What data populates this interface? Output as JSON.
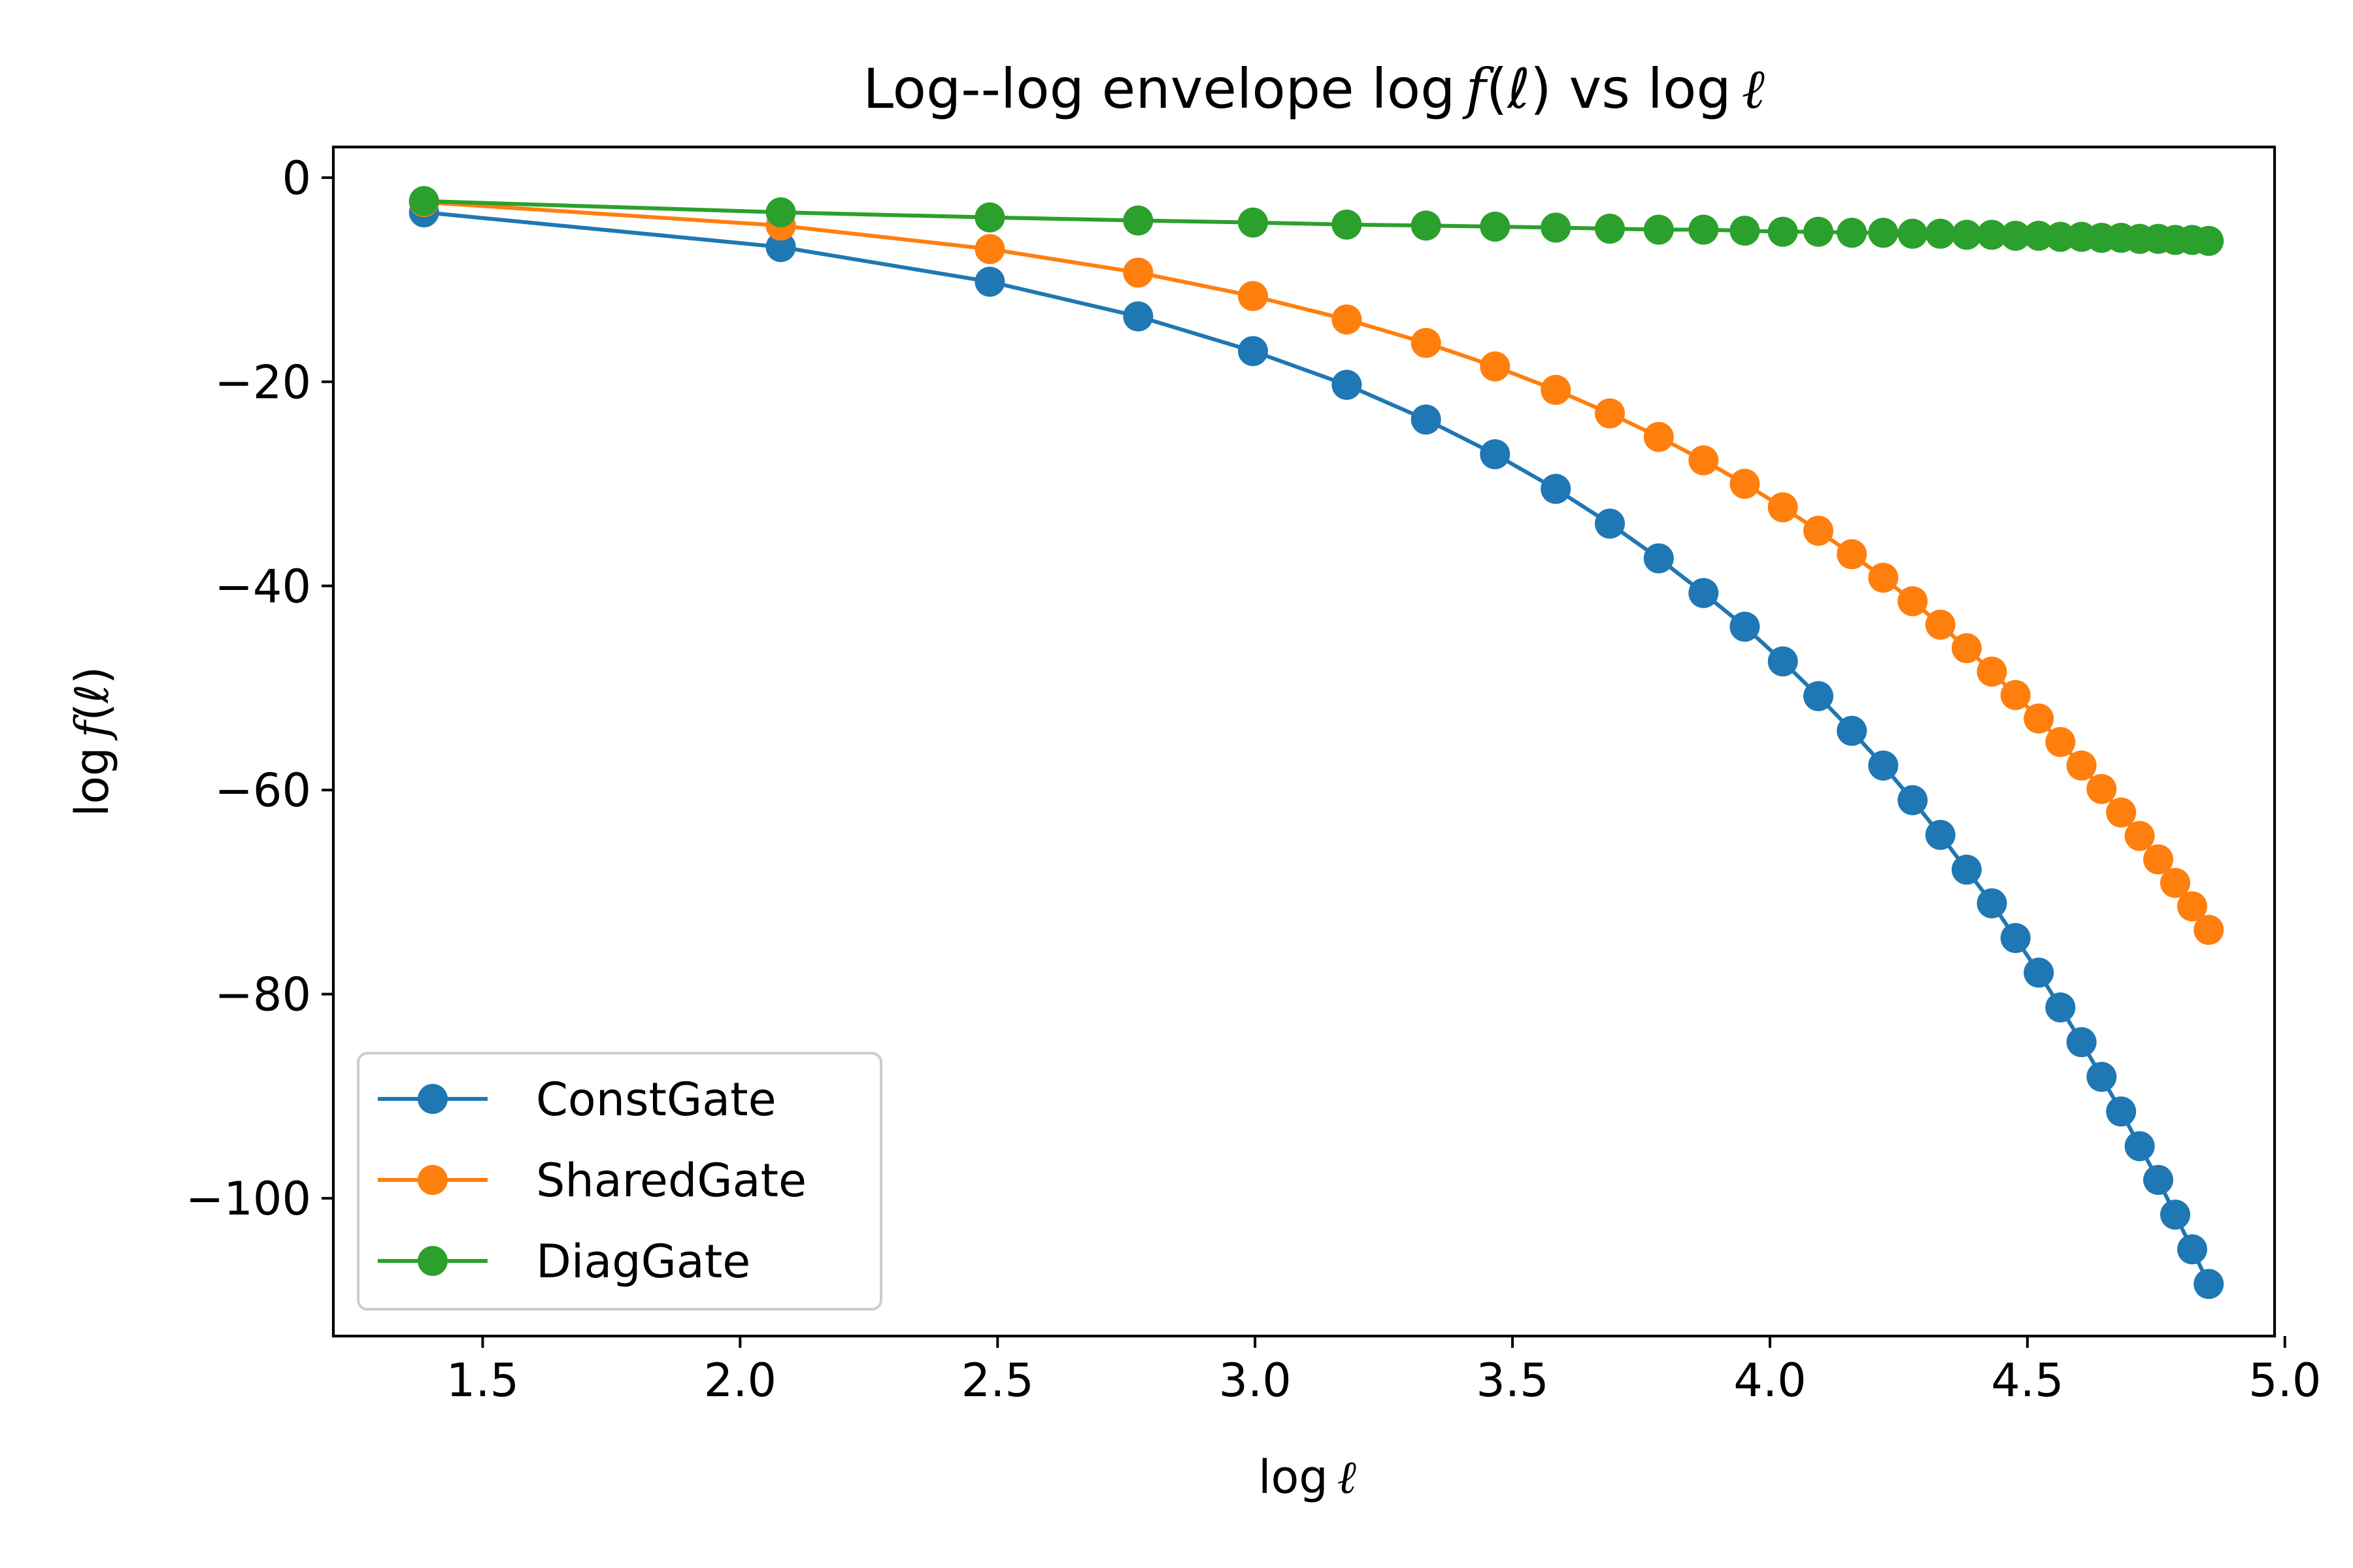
{
  "chart_data": {
    "type": "line",
    "title_prefix": "Log--log envelope log",
    "title_f": "f",
    "title_mid": "(ℓ) vs log",
    "title_ell": "ℓ",
    "xlabel_prefix": "log",
    "xlabel_ell": "ℓ",
    "ylabel_prefix": "log",
    "ylabel_f": "f",
    "ylabel_suffix": "(ℓ)",
    "xlim": [
      1.21,
      4.98
    ],
    "ylim": [
      -113.5,
      3.0
    ],
    "xticks": [
      1.5,
      2.0,
      2.5,
      3.0,
      3.5,
      4.0,
      4.5,
      5.0
    ],
    "xtick_labels": [
      "1.5",
      "2.0",
      "2.5",
      "3.0",
      "3.5",
      "4.0",
      "4.5",
      "5.0"
    ],
    "yticks": [
      0,
      -20,
      -40,
      -60,
      -80,
      -100
    ],
    "ytick_labels": [
      "0",
      "−20",
      "−40",
      "−60",
      "−80",
      "−100"
    ],
    "grid": false,
    "legend_position": "lower-left",
    "x": [
      1.386,
      2.079,
      2.485,
      2.773,
      2.996,
      3.178,
      3.332,
      3.466,
      3.584,
      3.689,
      3.784,
      3.871,
      3.951,
      4.025,
      4.094,
      4.159,
      4.22,
      4.277,
      4.331,
      4.382,
      4.431,
      4.477,
      4.522,
      4.564,
      4.605,
      4.644,
      4.682,
      4.718,
      4.754,
      4.787,
      4.82,
      4.852
    ],
    "series": [
      {
        "name": "ConstGate",
        "color": "#1f77b4",
        "values": [
          -3.4,
          -6.8,
          -10.2,
          -13.6,
          -17.0,
          -20.3,
          -23.7,
          -27.1,
          -30.5,
          -33.9,
          -37.3,
          -40.7,
          -44.0,
          -47.4,
          -50.8,
          -54.2,
          -57.6,
          -61.0,
          -64.4,
          -67.8,
          -71.1,
          -74.5,
          -77.9,
          -81.3,
          -84.7,
          -88.1,
          -91.5,
          -94.9,
          -98.2,
          -101.6,
          -105.0,
          -108.4
        ]
      },
      {
        "name": "SharedGate",
        "color": "#ff7f0e",
        "values": [
          -2.4,
          -4.7,
          -7.0,
          -9.3,
          -11.6,
          -13.9,
          -16.2,
          -18.5,
          -20.8,
          -23.1,
          -25.4,
          -27.7,
          -30.0,
          -32.3,
          -34.6,
          -36.9,
          -39.2,
          -41.5,
          -43.8,
          -46.1,
          -48.4,
          -50.7,
          -53.0,
          -55.3,
          -57.6,
          -59.9,
          -62.2,
          -64.5,
          -66.8,
          -69.1,
          -71.4,
          -73.7
        ]
      },
      {
        "name": "DiagGate",
        "color": "#2ca02c",
        "values": [
          -2.3,
          -3.4,
          -3.9,
          -4.2,
          -4.4,
          -4.6,
          -4.7,
          -4.8,
          -4.9,
          -5.0,
          -5.1,
          -5.1,
          -5.2,
          -5.3,
          -5.3,
          -5.4,
          -5.4,
          -5.5,
          -5.5,
          -5.6,
          -5.6,
          -5.7,
          -5.7,
          -5.8,
          -5.8,
          -5.9,
          -5.9,
          -6.0,
          -6.0,
          -6.1,
          -6.1,
          -6.2
        ]
      }
    ]
  }
}
